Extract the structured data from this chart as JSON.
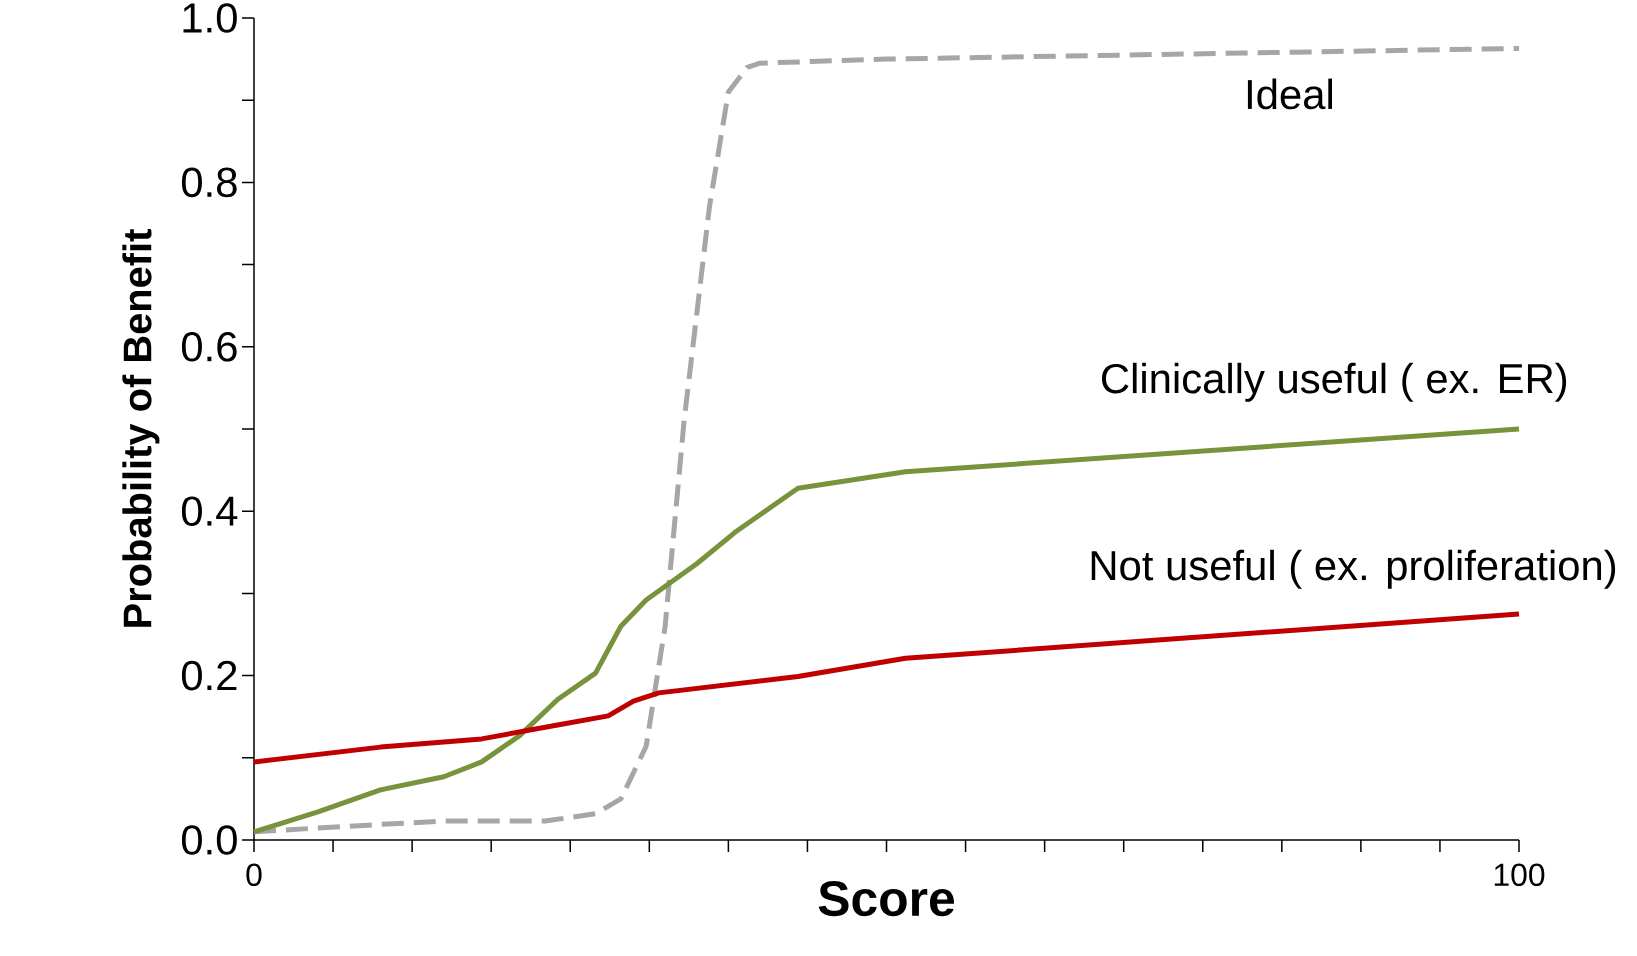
{
  "chart_data": {
    "type": "line",
    "xlabel": "Score",
    "ylabel": "Probability of Benefit",
    "xlim": [
      0,
      100
    ],
    "ylim": [
      0,
      1
    ],
    "xticks": [
      0,
      {
        "value": 6.25,
        "label": null
      },
      {
        "value": 12.5,
        "label": null
      },
      {
        "value": 18.75,
        "label": null
      },
      {
        "value": 25,
        "label": null
      },
      {
        "value": 31.25,
        "label": null
      },
      {
        "value": 37.5,
        "label": null
      },
      {
        "value": 43.75,
        "label": null
      },
      {
        "value": 50,
        "label": null
      },
      {
        "value": 56.25,
        "label": null
      },
      {
        "value": 62.5,
        "label": null
      },
      {
        "value": 68.75,
        "label": null
      },
      {
        "value": 75,
        "label": null
      },
      {
        "value": 81.25,
        "label": null
      },
      {
        "value": 87.5,
        "label": null
      },
      {
        "value": 93.75,
        "label": null
      },
      100
    ],
    "yticks": [
      {
        "value": 0,
        "label": "0.0"
      },
      {
        "value": 0.1,
        "label": null
      },
      {
        "value": 0.2,
        "label": "0.2"
      },
      {
        "value": 0.3,
        "label": null
      },
      {
        "value": 0.4,
        "label": "0.4"
      },
      {
        "value": 0.5,
        "label": null
      },
      {
        "value": 0.6,
        "label": "0.6"
      },
      {
        "value": 0.7,
        "label": null
      },
      {
        "value": 0.8,
        "label": "0.8"
      },
      {
        "value": 0.9,
        "label": null
      },
      {
        "value": 1,
        "label": "1.0"
      }
    ],
    "marker": "none",
    "grid": false,
    "series": [
      {
        "name": "Ideal",
        "color": "#a6a6a6",
        "line_style": "dashed",
        "x": [
          0,
          10,
          15,
          23,
          27,
          29,
          31,
          32.5,
          34,
          36,
          37.5,
          39,
          40,
          50,
          100
        ],
        "values": [
          0.01,
          0.019,
          0.023,
          0.023,
          0.032,
          0.05,
          0.114,
          0.26,
          0.51,
          0.77,
          0.91,
          0.94,
          0.945,
          0.95,
          0.963
        ]
      },
      {
        "name": "Clinically useful ( ex. ER)",
        "color": "#77933c",
        "line_style": "solid",
        "x": [
          0,
          5,
          10,
          15,
          18,
          21,
          24,
          27,
          29,
          31,
          35,
          38,
          43,
          51.5,
          100
        ],
        "values": [
          0.01,
          0.034,
          0.061,
          0.077,
          0.095,
          0.127,
          0.171,
          0.203,
          0.26,
          0.292,
          0.336,
          0.374,
          0.428,
          0.448,
          0.5
        ]
      },
      {
        "name": "Not useful ( ex. proliferation)",
        "color": "#c00000",
        "line_style": "solid",
        "x": [
          0,
          10,
          18,
          24,
          28,
          30,
          32,
          43,
          51.5,
          100
        ],
        "values": [
          0.095,
          0.113,
          0.123,
          0.14,
          0.151,
          0.169,
          0.179,
          0.199,
          0.221,
          0.275
        ]
      }
    ]
  }
}
